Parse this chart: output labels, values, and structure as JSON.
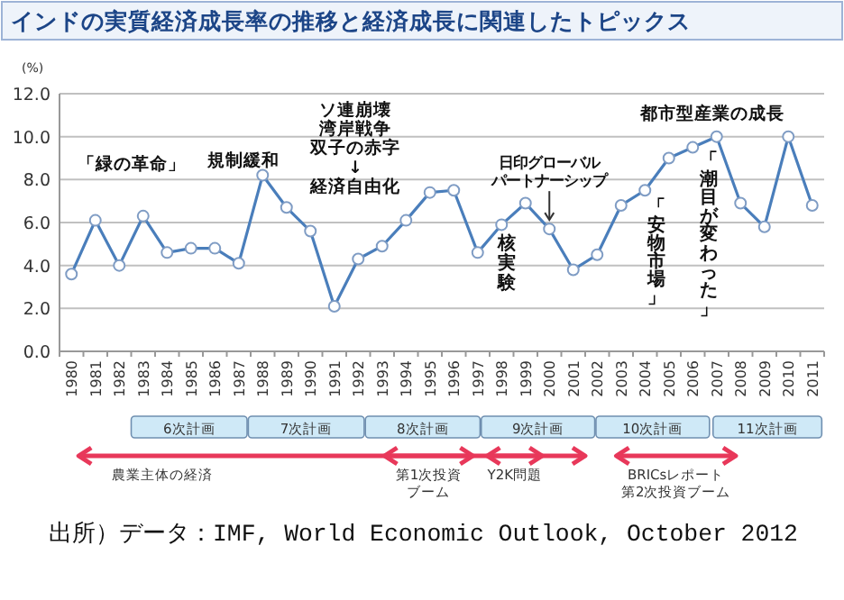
{
  "chart_data": {
    "type": "line",
    "title": "インドの実質経済成長率の推移と経済成長に関連したトピックス",
    "ylabel": "(%)",
    "categories": [
      "1980",
      "1981",
      "1982",
      "1983",
      "1984",
      "1985",
      "1986",
      "1987",
      "1988",
      "1989",
      "1990",
      "1991",
      "1992",
      "1993",
      "1994",
      "1995",
      "1996",
      "1997",
      "1998",
      "1999",
      "2000",
      "2001",
      "2002",
      "2003",
      "2004",
      "2005",
      "2006",
      "2007",
      "2008",
      "2009",
      "2010",
      "2011"
    ],
    "series": [
      {
        "color": "#4a7ebb",
        "values": [
          3.6,
          6.1,
          4.0,
          6.3,
          4.6,
          4.8,
          4.8,
          4.1,
          8.2,
          6.7,
          5.6,
          2.1,
          4.3,
          4.9,
          6.1,
          7.4,
          7.5,
          4.6,
          5.9,
          6.9,
          5.7,
          3.8,
          4.5,
          6.8,
          7.5,
          9.0,
          9.5,
          10.0,
          6.9,
          5.8,
          10.0,
          6.8
        ]
      }
    ],
    "ylim": [
      0,
      12
    ],
    "yticks": [
      {
        "value": 0,
        "label": "0.0"
      },
      {
        "value": 2,
        "label": "2.0"
      },
      {
        "value": 4,
        "label": "4.0"
      },
      {
        "value": 6,
        "label": "6.0"
      },
      {
        "value": 8,
        "label": "8.0"
      },
      {
        "value": 10,
        "label": "10.0"
      },
      {
        "value": 12,
        "label": "12.0"
      }
    ],
    "grid": "y",
    "marker": "circle",
    "line_style": "solid",
    "annotations": [
      "「緑の革命」",
      "規制緩和",
      "ソ連崩壊湾岸戦争双子の赤字↓経済自由化",
      {
        "text": "日印グローバルパートナーシップ",
        "x": "2000",
        "y": 5.7
      },
      "核実験",
      "「安物市場」",
      "「潮目が変わった」",
      "都市型産業の成長",
      "6次計画",
      "7次計画",
      "8次計画",
      "9次計画",
      "10次計画",
      "11次計画",
      "農業主体の経済",
      "第1次投資ブーム",
      "Y2K問題",
      "BRICsレポート第2次投資ブーム",
      "出所）データ：IMF, World Economic Outlook, October 2012"
    ]
  }
}
